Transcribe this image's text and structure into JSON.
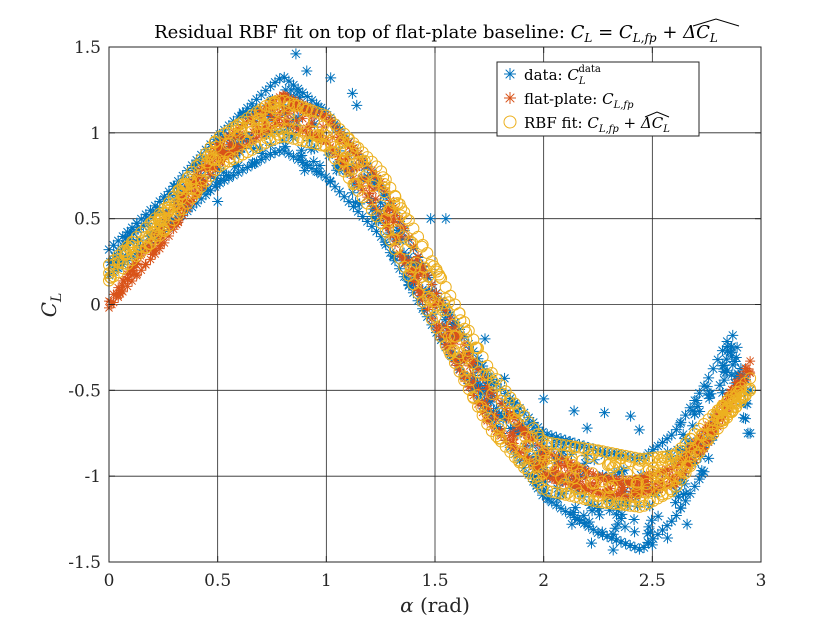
{
  "chart_data": {
    "type": "scatter",
    "title": "Residual RBF fit on top of flat-plate baseline: C_L = C_L,fp + ΔC_L (hat)",
    "title_parts": {
      "prefix": "Residual RBF fit on top of flat-plate baseline: ",
      "lhs": "C",
      "lhs_sub": "L",
      "eq": " = ",
      "t1": "C",
      "t1_sub": "L,fp",
      "plus": " + ",
      "t2": "ΔC",
      "t2_sub": "L"
    },
    "xlabel": "α (rad)",
    "xlabel_symbol": "α",
    "xlabel_unit": " (rad)",
    "ylabel": "C_L",
    "ylabel_symbol": "C",
    "ylabel_sub": "L",
    "xlim": [
      0,
      3
    ],
    "ylim": [
      -1.5,
      1.5
    ],
    "xticks": [
      0,
      0.5,
      1,
      1.5,
      2,
      2.5,
      3
    ],
    "yticks": [
      -1.5,
      -1,
      -0.5,
      0,
      0.5,
      1,
      1.5
    ],
    "xtick_labels": [
      "0",
      "0.5",
      "1",
      "1.5",
      "2",
      "2.5",
      "3"
    ],
    "ytick_labels": [
      "-1.5",
      "-1",
      "-0.5",
      "0",
      "0.5",
      "1",
      "1.5"
    ],
    "grid": true,
    "legend_position": "top-right",
    "series": [
      {
        "name": "data: C_L^data",
        "marker": "asterisk",
        "color": "#0072BD",
        "envelope": {
          "x": [
            0,
            0.25,
            0.5,
            0.75,
            0.8,
            1.0,
            1.25,
            1.5,
            1.75,
            2.0,
            2.25,
            2.45,
            2.6,
            2.75,
            2.85,
            2.95
          ],
          "upper": [
            0.32,
            0.62,
            0.98,
            1.28,
            1.33,
            1.12,
            0.7,
            0.08,
            -0.42,
            -0.75,
            -0.85,
            -0.9,
            -0.75,
            -0.45,
            -0.2,
            -0.5
          ],
          "lower": [
            0.17,
            0.42,
            0.7,
            0.88,
            0.9,
            0.74,
            0.4,
            -0.15,
            -0.65,
            -1.12,
            -1.33,
            -1.43,
            -1.25,
            -0.95,
            -0.35,
            -0.75
          ]
        },
        "outliers": [
          {
            "x": 0.86,
            "y": 1.46
          },
          {
            "x": 0.91,
            "y": 1.36
          },
          {
            "x": 1.02,
            "y": 1.32
          },
          {
            "x": 1.12,
            "y": 1.23
          },
          {
            "x": 1.14,
            "y": 1.16
          },
          {
            "x": 0.88,
            "y": 0.86
          },
          {
            "x": 0.9,
            "y": 0.78
          },
          {
            "x": 0.5,
            "y": 0.6
          },
          {
            "x": 1.38,
            "y": 0.11
          },
          {
            "x": 1.55,
            "y": 0.5
          },
          {
            "x": 1.48,
            "y": 0.5
          },
          {
            "x": 1.73,
            "y": -0.2
          },
          {
            "x": 1.82,
            "y": -0.43
          },
          {
            "x": 1.9,
            "y": -0.73
          },
          {
            "x": 2.0,
            "y": -0.55
          },
          {
            "x": 2.14,
            "y": -0.62
          },
          {
            "x": 2.2,
            "y": -0.72
          },
          {
            "x": 2.28,
            "y": -0.63
          },
          {
            "x": 2.4,
            "y": -0.65
          },
          {
            "x": 2.44,
            "y": -0.73
          },
          {
            "x": 2.13,
            "y": -1.28
          },
          {
            "x": 2.22,
            "y": -1.39
          },
          {
            "x": 2.32,
            "y": -1.43
          },
          {
            "x": 2.5,
            "y": -1.4
          },
          {
            "x": 2.57,
            "y": -1.36
          },
          {
            "x": 2.62,
            "y": -1.12
          },
          {
            "x": 2.66,
            "y": -1.28
          },
          {
            "x": 2.77,
            "y": -0.52
          },
          {
            "x": 2.87,
            "y": -0.18
          },
          {
            "x": 2.89,
            "y": -0.25
          },
          {
            "x": 2.94,
            "y": -0.75
          },
          {
            "x": 2.92,
            "y": -0.66
          }
        ]
      },
      {
        "name": "flat-plate: C_L,fp",
        "marker": "asterisk",
        "color": "#D95319",
        "envelope": {
          "x": [
            0,
            0.25,
            0.5,
            0.75,
            0.8,
            1.0,
            1.25,
            1.5,
            1.75,
            2.0,
            2.25,
            2.4,
            2.6,
            2.75,
            2.95
          ],
          "upper": [
            0.02,
            0.48,
            0.93,
            1.18,
            1.22,
            1.1,
            0.72,
            0.08,
            -0.5,
            -0.85,
            -1.0,
            -1.03,
            -0.95,
            -0.72,
            -0.33
          ],
          "lower": [
            -0.02,
            0.35,
            0.82,
            1.03,
            1.06,
            0.95,
            0.52,
            -0.12,
            -0.7,
            -1.0,
            -1.1,
            -1.12,
            -1.05,
            -0.82,
            -0.4
          ]
        },
        "outliers": []
      },
      {
        "name": "RBF fit: C_L,fp + ΔC_L (hat)",
        "marker": "circle",
        "color": "#EDB120",
        "envelope": {
          "x": [
            0,
            0.25,
            0.5,
            0.75,
            0.8,
            1.0,
            1.25,
            1.5,
            1.75,
            2.0,
            2.25,
            2.45,
            2.6,
            2.75,
            2.95
          ],
          "upper": [
            0.23,
            0.55,
            0.97,
            1.18,
            1.19,
            1.1,
            0.78,
            0.22,
            -0.38,
            -0.8,
            -0.85,
            -0.9,
            -0.88,
            -0.68,
            -0.43
          ],
          "lower": [
            0.14,
            0.42,
            0.8,
            0.96,
            0.98,
            0.92,
            0.48,
            -0.12,
            -0.72,
            -1.08,
            -1.15,
            -1.18,
            -1.08,
            -0.8,
            -0.5
          ]
        },
        "outliers": []
      }
    ],
    "legend_labels": {
      "data_prefix": "data: ",
      "data_sym": "C",
      "data_sub": "L",
      "data_sup": "data",
      "fp_prefix": "flat-plate: ",
      "fp_sym": "C",
      "fp_sub": "L,fp",
      "rbf_prefix": "RBF fit: ",
      "rbf_sym": "C",
      "rbf_sub": "L,fp",
      "rbf_plus": " + ",
      "rbf_sym2": "ΔC",
      "rbf_sub2": "L"
    }
  }
}
